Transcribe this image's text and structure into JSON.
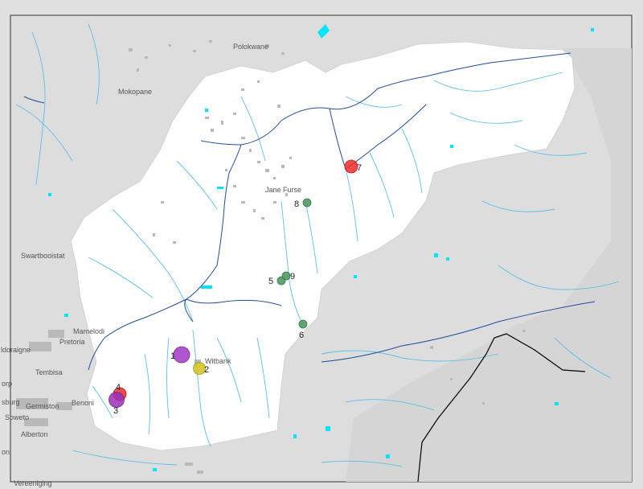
{
  "colors": {
    "land": "#dcdcdc",
    "catchment": "#ffffff",
    "river": "#5cc0e8",
    "major_river": "#1f4e9c",
    "water": "#00e5ff",
    "urban": "#b4b4b4",
    "border": "#000000",
    "frame": "#111111"
  },
  "places": [
    {
      "name": "Polokwane"
    },
    {
      "name": "Mokopane"
    },
    {
      "name": "Jane Furse"
    },
    {
      "name": "Swartbooistat"
    },
    {
      "name": "Mamelodi"
    },
    {
      "name": "Pretoria"
    },
    {
      "name": "ldoraigne"
    },
    {
      "name": "Tembisa"
    },
    {
      "name": "orp"
    },
    {
      "name": "sburg"
    },
    {
      "name": "Germiston"
    },
    {
      "name": "Benoni"
    },
    {
      "name": "Soweto"
    },
    {
      "name": "Alberton"
    },
    {
      "name": "on"
    },
    {
      "name": "Vereeniging"
    },
    {
      "name": "Witbank"
    }
  ],
  "markers": [
    {
      "label": "1",
      "color": "#a038c8",
      "size": "large"
    },
    {
      "label": "2",
      "color": "#d4c21c",
      "size": "medium"
    },
    {
      "label": "3",
      "color": "#9a2fb8",
      "size": "large"
    },
    {
      "label": "4",
      "color": "#ee2a2a",
      "size": "medium"
    },
    {
      "label": "5",
      "color": "#4f9a62",
      "size": "small"
    },
    {
      "label": "6",
      "color": "#4f9a62",
      "size": "small"
    },
    {
      "label": "7",
      "color": "#ee2a2a",
      "size": "medium"
    },
    {
      "label": "8",
      "color": "#4f9a62",
      "size": "small"
    },
    {
      "label": "9",
      "color": "#4f9a62",
      "size": "small"
    }
  ]
}
